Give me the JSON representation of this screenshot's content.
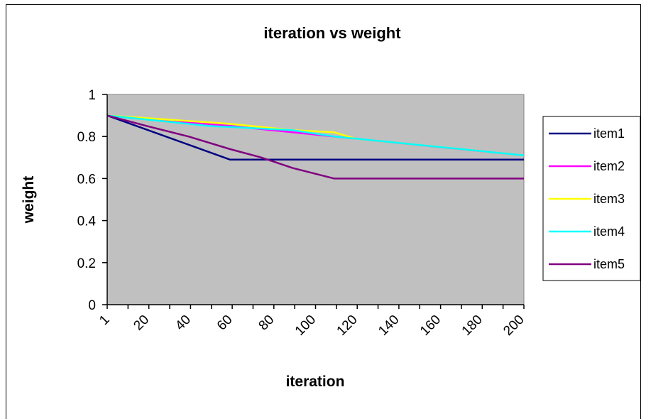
{
  "chart_data": {
    "type": "line",
    "title": "iteration vs weight",
    "xlabel": "iteration",
    "ylabel": "weight",
    "xlim": [
      1,
      201
    ],
    "ylim": [
      0,
      1
    ],
    "x_tick_labels": [
      "1",
      "20",
      "40",
      "60",
      "80",
      "100",
      "120",
      "140",
      "160",
      "180",
      "200"
    ],
    "x_tick_values": [
      1,
      20,
      40,
      60,
      80,
      100,
      120,
      140,
      160,
      180,
      200
    ],
    "y_tick_labels": [
      "0",
      "0.2",
      "0.4",
      "0.6",
      "0.8",
      "1"
    ],
    "y_tick_values": [
      0,
      0.2,
      0.4,
      0.6,
      0.8,
      1
    ],
    "plot_background": "#c0c0c0",
    "grid": false,
    "legend_position": "right",
    "series": [
      {
        "name": "item1",
        "color": "#000080",
        "x": [
          1,
          60,
          201
        ],
        "y": [
          0.9,
          0.69,
          0.69
        ]
      },
      {
        "name": "item2",
        "color": "#ff00ff",
        "x": [
          1,
          60,
          90,
          110,
          170,
          201
        ],
        "y": [
          0.9,
          0.85,
          0.82,
          0.8,
          0.74,
          0.71
        ]
      },
      {
        "name": "item3",
        "color": "#ffff00",
        "x": [
          1,
          60,
          90,
          110,
          120,
          201
        ],
        "y": [
          0.9,
          0.86,
          0.83,
          0.82,
          0.79,
          0.71
        ]
      },
      {
        "name": "item4",
        "color": "#00ffff",
        "x": [
          1,
          50,
          90,
          110,
          201
        ],
        "y": [
          0.9,
          0.85,
          0.83,
          0.8,
          0.71
        ]
      },
      {
        "name": "item5",
        "color": "#800080",
        "x": [
          1,
          20,
          40,
          60,
          75,
          90,
          110,
          201
        ],
        "y": [
          0.9,
          0.85,
          0.8,
          0.74,
          0.7,
          0.65,
          0.6,
          0.6
        ]
      }
    ]
  }
}
